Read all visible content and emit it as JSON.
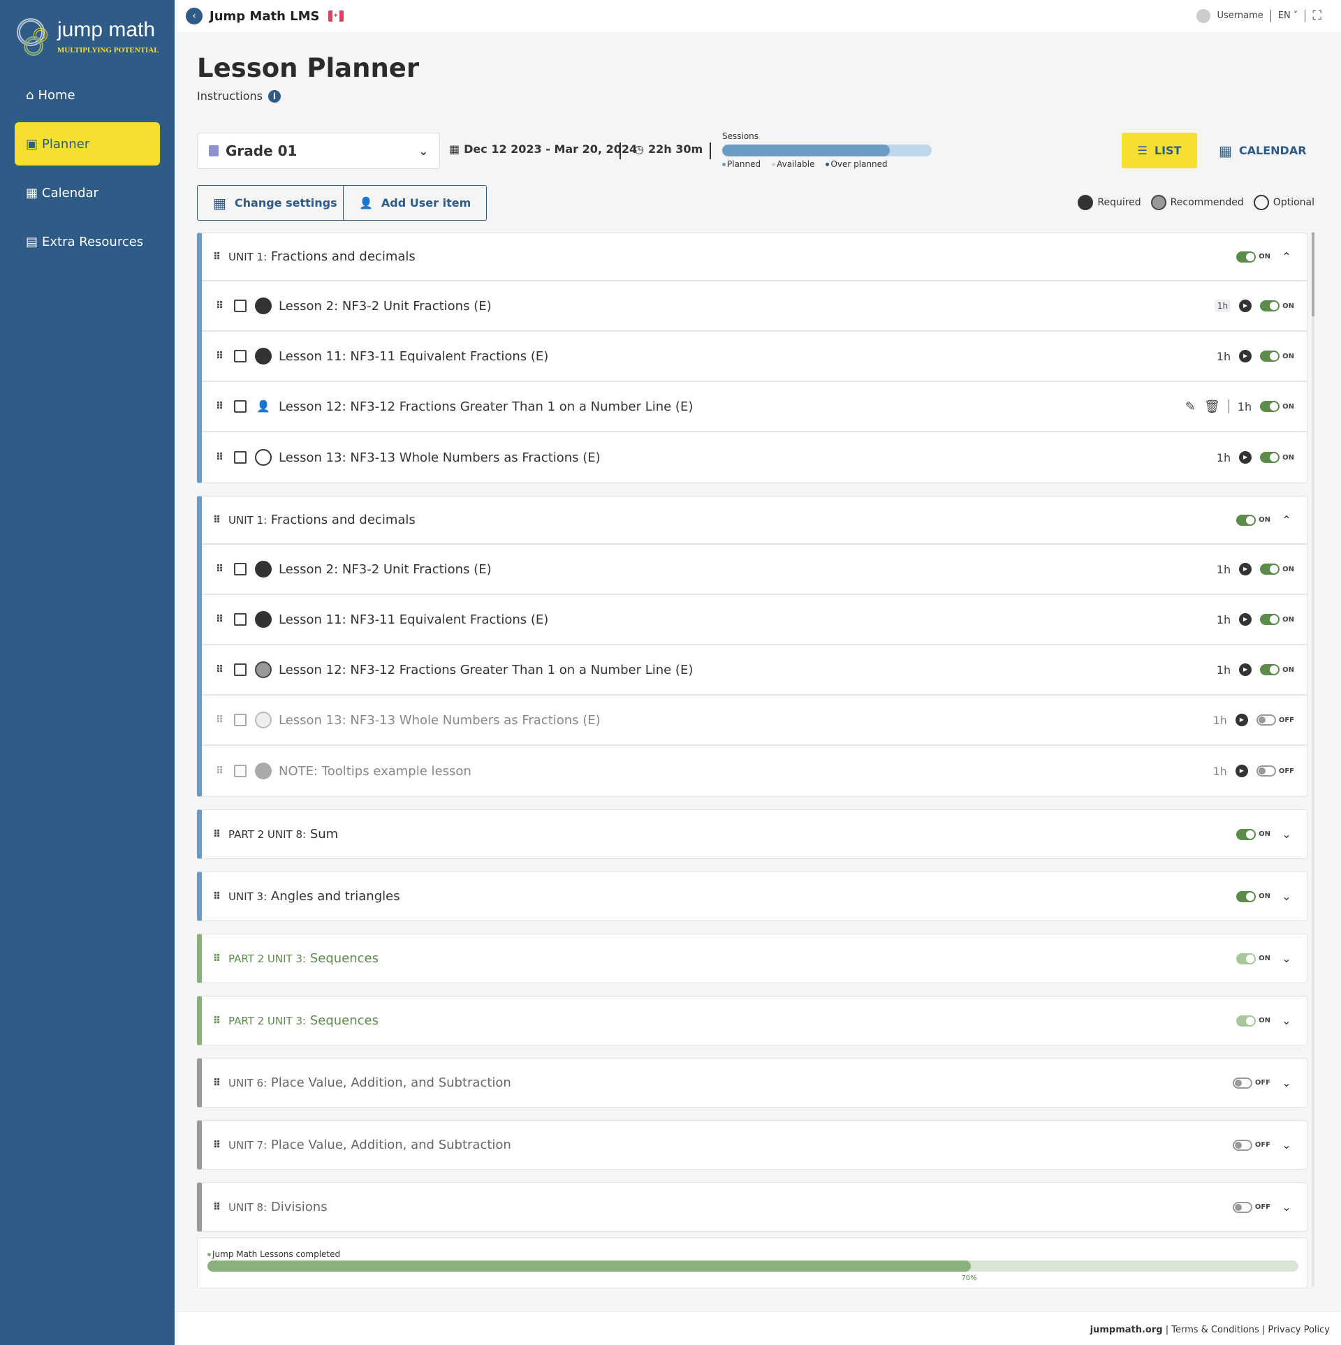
{
  "brand": {
    "logo_text": "jump math",
    "tagline": "MULTIPLYING POTENTIAL"
  },
  "sidebar": {
    "items": [
      {
        "label": "Home",
        "icon": "home-icon"
      },
      {
        "label": "Planner",
        "icon": "planner-icon",
        "active": true
      },
      {
        "label": "Calendar",
        "icon": "calendar-icon"
      },
      {
        "label": "Extra Resources",
        "icon": "archive-icon"
      }
    ]
  },
  "topbar": {
    "title": "Jump Math LMS",
    "username": "Username",
    "language": "EN"
  },
  "page": {
    "title": "Lesson Planner",
    "instructions": "Instructions"
  },
  "filters": {
    "grade": "Grade 01",
    "date_range": "Dec 12 2023 - Mar 20, 2024",
    "duration": "22h 30m"
  },
  "sessions": {
    "label": "Sessions",
    "planned_fraction": 0.8,
    "legend": [
      "Planned",
      "Available",
      "Over planned"
    ]
  },
  "view": {
    "list_label": "LIST",
    "calendar_label": "CALENDAR"
  },
  "actions": {
    "change_settings": "Change settings",
    "add_user_item": "Add User item"
  },
  "type_legend": [
    "Required",
    "Recommended",
    "Optional"
  ],
  "colors": {
    "sidebar": "#2f5b87",
    "accent_yellow": "#f5e02f",
    "toggle_on": "#5b8c4a",
    "session_planned": "#6b9bc3",
    "session_available": "#bdd8ec",
    "over_planned": "#2f5b87"
  },
  "groups": [
    {
      "prefix": "UNIT 1:",
      "title": "Fractions and decimals",
      "toggle": "ON",
      "expanded": true,
      "color": "blue",
      "lessons": [
        {
          "title": "Lesson 2: NF3-2 Unit Fractions (E)",
          "type": "required",
          "duration": "1h",
          "toggle": "ON",
          "badge": true
        },
        {
          "title": "Lesson 11: NF3-11 Equivalent Fractions (E)",
          "type": "required",
          "duration": "1h",
          "toggle": "ON"
        },
        {
          "title": "Lesson 12: NF3-12 Fractions Greater Than 1 on a Number Line (E)",
          "type": "user",
          "duration": "1h",
          "toggle": "ON",
          "editable": true
        },
        {
          "title": "Lesson 13: NF3-13 Whole Numbers as Fractions (E)",
          "type": "optional",
          "duration": "1h",
          "toggle": "ON"
        }
      ]
    },
    {
      "prefix": "UNIT 1:",
      "title": "Fractions and decimals",
      "toggle": "ON",
      "expanded": true,
      "color": "blue",
      "lessons": [
        {
          "title": "Lesson 2: NF3-2 Unit Fractions (E)",
          "type": "required",
          "duration": "1h",
          "toggle": "ON"
        },
        {
          "title": "Lesson 11: NF3-11 Equivalent Fractions (E)",
          "type": "required",
          "duration": "1h",
          "toggle": "ON"
        },
        {
          "title": "Lesson 12: NF3-12 Fractions Greater Than 1 on a Number Line (E)",
          "type": "recommended",
          "duration": "1h",
          "toggle": "ON"
        },
        {
          "title": "Lesson 13: NF3-13 Whole Numbers as Fractions (E)",
          "type": "optional",
          "duration": "1h",
          "toggle": "OFF"
        },
        {
          "title": "NOTE: Tooltips example lesson",
          "type": "recommended",
          "duration": "1h",
          "toggle": "OFF"
        }
      ]
    },
    {
      "prefix": "PART 2 UNIT 8:",
      "title": "Sum",
      "toggle": "ON",
      "expanded": false,
      "color": "blue"
    },
    {
      "prefix": "UNIT 3:",
      "title": "Angles and triangles",
      "toggle": "ON",
      "expanded": false,
      "color": "blue"
    },
    {
      "prefix": "PART 2 UNIT 3:",
      "title": "Sequences",
      "toggle": "ON",
      "expanded": false,
      "color": "green"
    },
    {
      "prefix": "PART 2 UNIT 3:",
      "title": "Sequences",
      "toggle": "ON",
      "expanded": false,
      "color": "green"
    },
    {
      "prefix": "UNIT 6:",
      "title": "Place Value, Addition, and Subtraction",
      "toggle": "OFF",
      "expanded": false,
      "color": "grey"
    },
    {
      "prefix": "UNIT 7:",
      "title": "Place Value, Addition, and Subtraction",
      "toggle": "OFF",
      "expanded": false,
      "color": "grey"
    },
    {
      "prefix": "UNIT 8:",
      "title": "Divisions",
      "toggle": "OFF",
      "expanded": false,
      "color": "grey"
    }
  ],
  "progress": {
    "label": "Jump Math Lessons completed",
    "percent": 70,
    "percent_label": "70%"
  },
  "footer": {
    "links": [
      "jumpmath.org",
      "Terms & Conditions",
      "Privacy Policy"
    ]
  }
}
